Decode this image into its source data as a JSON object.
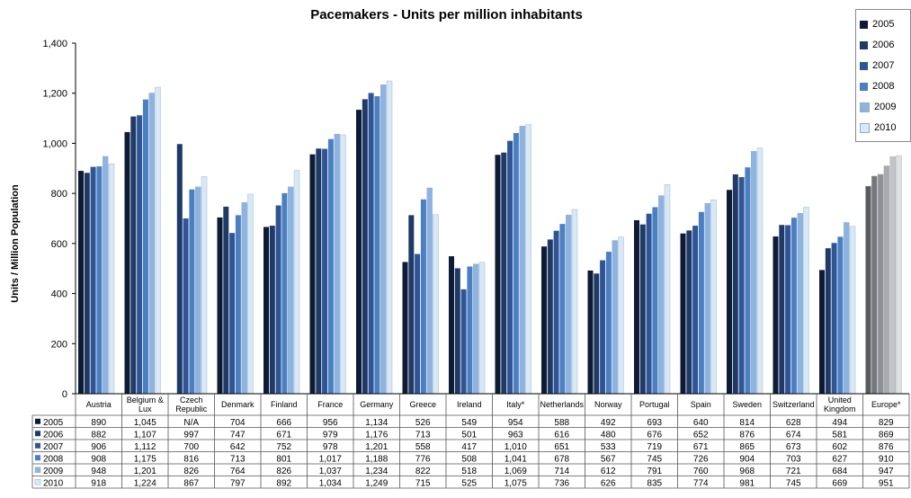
{
  "chart_data": {
    "type": "bar",
    "title": "Pacemakers - Units per million inhabitants",
    "ylabel": "Units / Million Population",
    "xlabel": "",
    "ylim": [
      0,
      1400
    ],
    "yticks": [
      "0",
      "200",
      "400",
      "600",
      "800",
      "1,000",
      "1,200",
      "1,400"
    ],
    "grid": false,
    "legend_position": "top-right",
    "categories": [
      [
        "Austria"
      ],
      [
        "Belgium &",
        "Lux"
      ],
      [
        "Czech",
        "Republic"
      ],
      [
        "Denmark"
      ],
      [
        "Finland"
      ],
      [
        "France"
      ],
      [
        "Germany"
      ],
      [
        "Greece"
      ],
      [
        "Ireland"
      ],
      [
        "Italy*"
      ],
      [
        "Netherlands"
      ],
      [
        "Norway"
      ],
      [
        "Portugal"
      ],
      [
        "Spain"
      ],
      [
        "Sweden"
      ],
      [
        "Switzerland"
      ],
      [
        "United",
        "Kingdom"
      ],
      [
        "Europe*"
      ]
    ],
    "series": [
      {
        "name": "2005",
        "color": "#0d1b36",
        "europe_color": "#5a5a5a",
        "values": [
          890,
          1045,
          null,
          704,
          666,
          956,
          1134,
          526,
          549,
          954,
          588,
          492,
          693,
          640,
          814,
          628,
          494,
          829
        ],
        "labels": [
          "890",
          "1,045",
          "N/A",
          "704",
          "666",
          "956",
          "1,134",
          "526",
          "549",
          "954",
          "588",
          "492",
          "693",
          "640",
          "814",
          "628",
          "494",
          "829"
        ]
      },
      {
        "name": "2006",
        "color": "#1f3a66",
        "europe_color": "#767676",
        "values": [
          882,
          1107,
          997,
          747,
          671,
          979,
          1176,
          713,
          501,
          963,
          616,
          480,
          676,
          652,
          876,
          674,
          581,
          869
        ],
        "labels": [
          "882",
          "1,107",
          "997",
          "747",
          "671",
          "979",
          "1,176",
          "713",
          "501",
          "963",
          "616",
          "480",
          "676",
          "652",
          "876",
          "674",
          "581",
          "869"
        ]
      },
      {
        "name": "2007",
        "color": "#2f5597",
        "europe_color": "#909090",
        "values": [
          906,
          1112,
          700,
          642,
          752,
          978,
          1201,
          558,
          417,
          1010,
          651,
          533,
          719,
          671,
          865,
          673,
          602,
          876
        ],
        "labels": [
          "906",
          "1,112",
          "700",
          "642",
          "752",
          "978",
          "1,201",
          "558",
          "417",
          "1,010",
          "651",
          "533",
          "719",
          "671",
          "865",
          "673",
          "602",
          "876"
        ]
      },
      {
        "name": "2008",
        "color": "#4a7fc1",
        "europe_color": "#aaaaaa",
        "values": [
          908,
          1175,
          816,
          713,
          801,
          1017,
          1188,
          776,
          508,
          1041,
          678,
          567,
          745,
          726,
          904,
          703,
          627,
          910
        ],
        "labels": [
          "908",
          "1,175",
          "816",
          "713",
          "801",
          "1,017",
          "1,188",
          "776",
          "508",
          "1,041",
          "678",
          "567",
          "745",
          "726",
          "904",
          "703",
          "627",
          "910"
        ]
      },
      {
        "name": "2009",
        "color": "#8db3e2",
        "europe_color": "#c4c4c4",
        "values": [
          948,
          1201,
          826,
          764,
          826,
          1037,
          1234,
          822,
          518,
          1069,
          714,
          612,
          791,
          760,
          968,
          721,
          684,
          947
        ],
        "labels": [
          "948",
          "1,201",
          "826",
          "764",
          "826",
          "1,037",
          "1,234",
          "822",
          "518",
          "1,069",
          "714",
          "612",
          "791",
          "760",
          "968",
          "721",
          "684",
          "947"
        ]
      },
      {
        "name": "2010",
        "color": "#d7e8f7",
        "europe_color": "#e0e0e0",
        "values": [
          918,
          1224,
          867,
          797,
          892,
          1034,
          1249,
          715,
          525,
          1075,
          736,
          626,
          835,
          774,
          981,
          745,
          669,
          951
        ],
        "labels": [
          "918",
          "1,224",
          "867",
          "797",
          "892",
          "1,034",
          "1,249",
          "715",
          "525",
          "1,075",
          "736",
          "626",
          "835",
          "774",
          "981",
          "745",
          "669",
          "951"
        ]
      }
    ]
  }
}
